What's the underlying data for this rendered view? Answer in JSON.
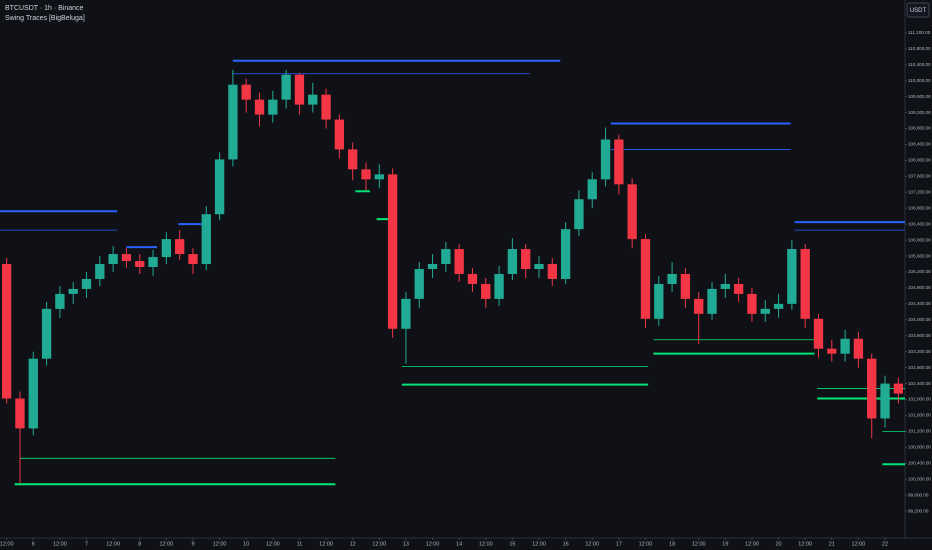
{
  "chart_data": {
    "type": "candlestick",
    "title": "BTCUSDT · 1h · Binance",
    "subtitle": "Swing Traces [BigBeluga]",
    "currency": "USDT",
    "up_color": "#22ab94",
    "down_color": "#f23645",
    "categories": [
      null,
      null,
      null,
      null,
      null,
      null,
      null,
      null,
      null,
      null,
      null,
      null,
      null,
      null,
      null,
      null,
      null,
      null,
      null,
      null,
      null,
      null,
      null,
      null,
      null,
      null,
      null,
      null,
      null,
      null,
      null,
      null,
      null,
      null,
      null,
      null,
      null,
      null,
      null,
      null,
      null,
      null,
      null,
      null,
      null,
      null,
      null,
      null,
      null,
      null,
      null,
      null,
      null,
      null,
      null,
      null,
      null,
      null,
      null,
      null,
      null,
      null,
      null,
      null,
      null,
      null,
      null,
      null
    ],
    "open": [
      105400,
      102025,
      101275,
      103025,
      104275,
      104650,
      104775,
      105025,
      105400,
      105650,
      105475,
      105325,
      105575,
      106025,
      105650,
      105400,
      106650,
      108025,
      109900,
      109525,
      109150,
      109525,
      110150,
      109400,
      109650,
      109025,
      108275,
      107775,
      107525,
      107650,
      103775,
      104525,
      105275,
      105400,
      105775,
      105150,
      104900,
      104525,
      105150,
      105775,
      105275,
      105400,
      105025,
      106275,
      107025,
      107525,
      108525,
      107400,
      106025,
      104025,
      104900,
      105150,
      104525,
      104150,
      104775,
      104900,
      104650,
      104150,
      104275,
      104400,
      105775,
      104025,
      103275,
      103150,
      103525,
      103025,
      101525,
      102400
    ],
    "high": [
      105550,
      102200,
      103200,
      104450,
      104850,
      104950,
      105200,
      105600,
      105850,
      105800,
      105650,
      105750,
      106200,
      106250,
      105800,
      106850,
      108200,
      110275,
      110050,
      109700,
      109750,
      110275,
      110200,
      109950,
      109800,
      109150,
      108450,
      107950,
      107900,
      107800,
      104700,
      105450,
      105650,
      105950,
      105900,
      105300,
      105050,
      105350,
      106050,
      105900,
      105600,
      105550,
      106450,
      107250,
      107700,
      108825,
      108650,
      107550,
      106150,
      105100,
      105450,
      105300,
      104700,
      104950,
      105150,
      105050,
      104800,
      104500,
      104650,
      106000,
      105900,
      104150,
      103500,
      103750,
      103700,
      103150,
      102600,
      102550
    ],
    "low": [
      101900,
      99900,
      101100,
      102850,
      104050,
      104400,
      104550,
      104850,
      105200,
      105300,
      105150,
      105100,
      105400,
      105500,
      105150,
      105250,
      106500,
      107850,
      109200,
      108850,
      108950,
      109300,
      109150,
      109200,
      108800,
      108050,
      107500,
      107250,
      107300,
      103550,
      102900,
      104300,
      105050,
      105200,
      104950,
      104700,
      104300,
      104350,
      105000,
      105050,
      105050,
      104850,
      104900,
      106100,
      106800,
      107350,
      107150,
      105800,
      103800,
      103850,
      104700,
      104300,
      103400,
      104000,
      104550,
      104450,
      103950,
      103950,
      104050,
      104250,
      103800,
      103050,
      102950,
      102950,
      102800,
      101025,
      101300,
      101900
    ],
    "close": [
      102025,
      101275,
      103025,
      104275,
      104650,
      104775,
      105025,
      105400,
      105650,
      105475,
      105325,
      105575,
      106025,
      105650,
      105400,
      106650,
      108025,
      109900,
      109525,
      109150,
      109525,
      110150,
      109400,
      109650,
      109025,
      108275,
      107775,
      107525,
      107650,
      103775,
      104525,
      105275,
      105400,
      105775,
      105150,
      104900,
      104525,
      105150,
      105775,
      105275,
      105400,
      105025,
      106275,
      107025,
      107525,
      108525,
      107400,
      106025,
      104025,
      104900,
      105150,
      104525,
      104150,
      104775,
      104900,
      104650,
      104150,
      104275,
      104400,
      105775,
      104025,
      103275,
      103150,
      103525,
      103025,
      101525,
      102400,
      102150
    ],
    "levels": [
      {
        "price": 106725,
        "start": 0,
        "end": 8.8,
        "color": "#2962ff",
        "width": 2
      },
      {
        "price": 106250,
        "start": 0,
        "end": 8.8,
        "color": "#2962ff",
        "width": 0.8
      },
      {
        "price": 105825,
        "start": 9.5,
        "end": 11.8,
        "color": "#2962ff",
        "width": 2
      },
      {
        "price": 106400,
        "start": 13.4,
        "end": 15.4,
        "color": "#2962ff",
        "width": 2
      },
      {
        "price": 110500,
        "start": 17.5,
        "end": 42.1,
        "color": "#2962ff",
        "width": 2
      },
      {
        "price": 110175,
        "start": 17.5,
        "end": 39.8,
        "color": "#2962ff",
        "width": 0.8
      },
      {
        "price": 108925,
        "start": 45.9,
        "end": 59.4,
        "color": "#2962ff",
        "width": 2
      },
      {
        "price": 108275,
        "start": 45.9,
        "end": 59.4,
        "color": "#2962ff",
        "width": 0.8
      },
      {
        "price": 106450,
        "start": 59.7,
        "end": 68,
        "color": "#2962ff",
        "width": 2
      },
      {
        "price": 106250,
        "start": 59.7,
        "end": 68,
        "color": "#2962ff",
        "width": 0.8
      },
      {
        "price": 99875,
        "start": 1.1,
        "end": 25.2,
        "color": "#00e676",
        "width": 2
      },
      {
        "price": 100525,
        "start": 1.5,
        "end": 25.2,
        "color": "#00e676",
        "width": 0.8
      },
      {
        "price": 107225,
        "start": 26.7,
        "end": 27.8,
        "color": "#00e676",
        "width": 2
      },
      {
        "price": 106525,
        "start": 28.3,
        "end": 29.5,
        "color": "#00e676",
        "width": 2
      },
      {
        "price": 102375,
        "start": 30.2,
        "end": 48.7,
        "color": "#00e676",
        "width": 2
      },
      {
        "price": 102825,
        "start": 30.2,
        "end": 48.7,
        "color": "#00e676",
        "width": 0.8
      },
      {
        "price": 103150,
        "start": 49.1,
        "end": 61.2,
        "color": "#00e676",
        "width": 2
      },
      {
        "price": 103500,
        "start": 49.1,
        "end": 61.2,
        "color": "#00e676",
        "width": 0.8
      },
      {
        "price": 102025,
        "start": 61.4,
        "end": 68,
        "color": "#00e676",
        "width": 2
      },
      {
        "price": 102275,
        "start": 61.4,
        "end": 68,
        "color": "#00e676",
        "width": 0.8
      },
      {
        "price": 100375,
        "start": 66.3,
        "end": 68,
        "color": "#00e676",
        "width": 2
      },
      {
        "price": 101200,
        "start": 66.3,
        "end": 68,
        "color": "#00e676",
        "width": 0.8
      }
    ],
    "ylim": [
      98525,
      112025
    ],
    "yticks": [
      {
        "value": 111200,
        "label": "111,200.00"
      },
      {
        "value": 110800,
        "label": "110,800.00"
      },
      {
        "value": 110400,
        "label": "110,400.00"
      },
      {
        "value": 110000,
        "label": "110,000.00"
      },
      {
        "value": 109600,
        "label": "109,600.00"
      },
      {
        "value": 109200,
        "label": "109,200.00"
      },
      {
        "value": 108800,
        "label": "108,800.00"
      },
      {
        "value": 108400,
        "label": "108,400.00"
      },
      {
        "value": 108000,
        "label": "108,000.00"
      },
      {
        "value": 107600,
        "label": "107,600.00"
      },
      {
        "value": 107200,
        "label": "107,200.00"
      },
      {
        "value": 106800,
        "label": "106,800.00"
      },
      {
        "value": 106400,
        "label": "106,400.00"
      },
      {
        "value": 106000,
        "label": "106,000.00"
      },
      {
        "value": 105600,
        "label": "105,600.00"
      },
      {
        "value": 105200,
        "label": "105,200.00"
      },
      {
        "value": 104800,
        "label": "104,800.00"
      },
      {
        "value": 104400,
        "label": "104,400.00"
      },
      {
        "value": 104000,
        "label": "104,000.00"
      },
      {
        "value": 103600,
        "label": "103,600.00"
      },
      {
        "value": 103200,
        "label": "103,200.00"
      },
      {
        "value": 102800,
        "label": "102,800.00"
      },
      {
        "value": 102400,
        "label": "102,400.00"
      },
      {
        "value": 102000,
        "label": "102,000.00"
      },
      {
        "value": 101600,
        "label": "101,600.00"
      },
      {
        "value": 101200,
        "label": "101,200.00"
      },
      {
        "value": 100800,
        "label": "100,800.00"
      },
      {
        "value": 100400,
        "label": "100,400.00"
      },
      {
        "value": 100000,
        "label": "100,000.00"
      },
      {
        "value": 99600,
        "label": "99,600.00"
      },
      {
        "value": 99200,
        "label": "99,200.00"
      }
    ],
    "xticks": [
      {
        "value": 0.5,
        "label": "12:00"
      },
      {
        "value": 2.5,
        "label": "6"
      },
      {
        "value": 4.5,
        "label": "12:00"
      },
      {
        "value": 6.5,
        "label": "7"
      },
      {
        "value": 8.5,
        "label": "12:00"
      },
      {
        "value": 10.5,
        "label": "8"
      },
      {
        "value": 12.5,
        "label": "12:00"
      },
      {
        "value": 14.5,
        "label": "9"
      },
      {
        "value": 16.5,
        "label": "12:00"
      },
      {
        "value": 18.5,
        "label": "10"
      },
      {
        "value": 20.5,
        "label": "12:00"
      },
      {
        "value": 22.5,
        "label": "11"
      },
      {
        "value": 24.5,
        "label": "12:00"
      },
      {
        "value": 26.5,
        "label": "12"
      },
      {
        "value": 28.5,
        "label": "12:00"
      },
      {
        "value": 30.5,
        "label": "13"
      },
      {
        "value": 32.5,
        "label": "12:00"
      },
      {
        "value": 34.5,
        "label": "14"
      },
      {
        "value": 36.5,
        "label": "12:00"
      },
      {
        "value": 38.5,
        "label": "15"
      },
      {
        "value": 40.5,
        "label": "12:00"
      },
      {
        "value": 42.5,
        "label": "16"
      },
      {
        "value": 44.5,
        "label": "12:00"
      },
      {
        "value": 46.5,
        "label": "17"
      },
      {
        "value": 48.5,
        "label": "12:00"
      },
      {
        "value": 50.5,
        "label": "18"
      },
      {
        "value": 52.5,
        "label": "12:00"
      },
      {
        "value": 54.5,
        "label": "19"
      },
      {
        "value": 56.5,
        "label": "12:00"
      },
      {
        "value": 58.5,
        "label": "20"
      },
      {
        "value": 60.5,
        "label": "12:00"
      },
      {
        "value": 62.5,
        "label": "21"
      },
      {
        "value": 64.5,
        "label": "12:00"
      },
      {
        "value": 66.5,
        "label": "22"
      }
    ],
    "grid": false
  }
}
